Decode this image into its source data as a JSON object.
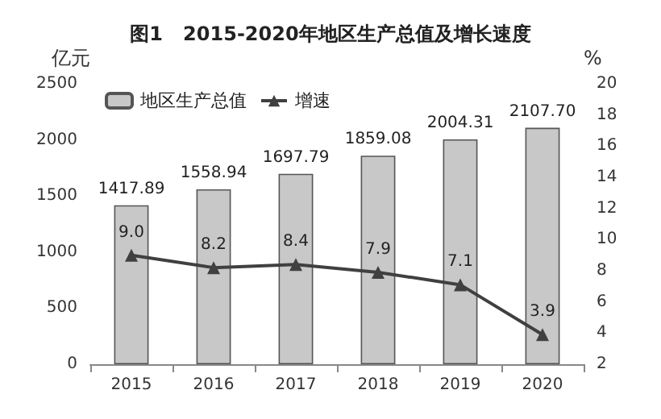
{
  "chart_data": {
    "type": "bar",
    "title": "图1   2015-2020年地区生产总值及增长速度",
    "ylabel": "亿元",
    "y2label": "%",
    "categories": [
      "2015",
      "2016",
      "2017",
      "2018",
      "2019",
      "2020"
    ],
    "series": [
      {
        "name": "地区生产总值",
        "color": "#c8c8c8",
        "values": [
          1417.89,
          1558.94,
          1697.79,
          1859.08,
          2004.31,
          2107.7
        ],
        "value_labels": [
          "1417.89",
          "1558.94",
          "1697.79",
          "1859.08",
          "2004.31",
          "2107.70"
        ]
      },
      {
        "name": "增速",
        "type": "line",
        "axis": "y2",
        "color": "#404040",
        "marker": "triangle",
        "values": [
          9.0,
          8.2,
          8.4,
          7.9,
          7.1,
          3.9
        ],
        "value_labels": [
          "9.0",
          "8.2",
          "8.4",
          "7.9",
          "7.1",
          "3.9"
        ]
      }
    ],
    "ylim": [
      0,
      2500
    ],
    "yticks": [
      0,
      500,
      1000,
      1500,
      2000,
      2500
    ],
    "y2lim": [
      2,
      20
    ],
    "y2ticks": [
      2,
      4,
      6,
      8,
      10,
      12,
      14,
      16,
      18,
      20
    ],
    "legend": "top left",
    "grid": false
  }
}
